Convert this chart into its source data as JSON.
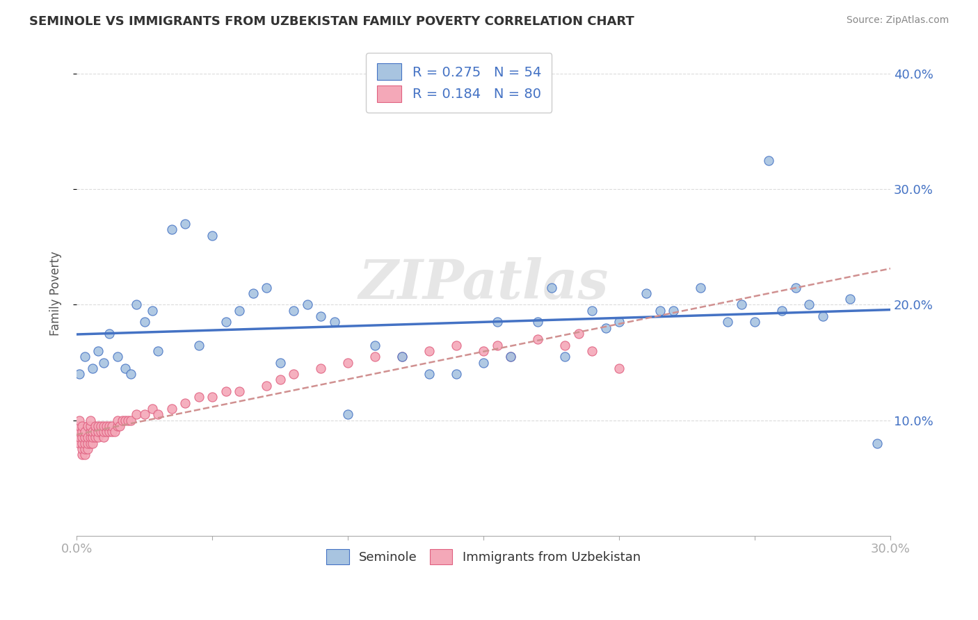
{
  "title": "SEMINOLE VS IMMIGRANTS FROM UZBEKISTAN FAMILY POVERTY CORRELATION CHART",
  "source": "Source: ZipAtlas.com",
  "ylabel": "Family Poverty",
  "legend1_R": "0.275",
  "legend1_N": "54",
  "legend2_R": "0.184",
  "legend2_N": "80",
  "seminole_color": "#a8c4e0",
  "uzbekistan_color": "#f4a8b8",
  "seminole_edge_color": "#4472c4",
  "uzbekistan_edge_color": "#e06080",
  "trend_seminole_color": "#4472c4",
  "trend_uzbekistan_color": "#d09090",
  "watermark": "ZIPatlas",
  "background_color": "#ffffff",
  "seminole_x": [
    0.001,
    0.003,
    0.006,
    0.008,
    0.01,
    0.012,
    0.015,
    0.018,
    0.02,
    0.022,
    0.025,
    0.028,
    0.03,
    0.035,
    0.04,
    0.045,
    0.05,
    0.055,
    0.06,
    0.065,
    0.07,
    0.075,
    0.08,
    0.085,
    0.09,
    0.095,
    0.1,
    0.11,
    0.12,
    0.13,
    0.14,
    0.15,
    0.155,
    0.16,
    0.17,
    0.175,
    0.18,
    0.19,
    0.195,
    0.2,
    0.21,
    0.215,
    0.22,
    0.23,
    0.24,
    0.245,
    0.25,
    0.255,
    0.26,
    0.265,
    0.27,
    0.275,
    0.285,
    0.295
  ],
  "seminole_y": [
    0.14,
    0.155,
    0.145,
    0.16,
    0.15,
    0.175,
    0.155,
    0.145,
    0.14,
    0.2,
    0.185,
    0.195,
    0.16,
    0.265,
    0.27,
    0.165,
    0.26,
    0.185,
    0.195,
    0.21,
    0.215,
    0.15,
    0.195,
    0.2,
    0.19,
    0.185,
    0.105,
    0.165,
    0.155,
    0.14,
    0.14,
    0.15,
    0.185,
    0.155,
    0.185,
    0.215,
    0.155,
    0.195,
    0.18,
    0.185,
    0.21,
    0.195,
    0.195,
    0.215,
    0.185,
    0.2,
    0.185,
    0.325,
    0.195,
    0.215,
    0.2,
    0.19,
    0.205,
    0.08
  ],
  "uzbekistan_x": [
    0.001,
    0.001,
    0.001,
    0.001,
    0.001,
    0.002,
    0.002,
    0.002,
    0.002,
    0.002,
    0.002,
    0.003,
    0.003,
    0.003,
    0.003,
    0.003,
    0.004,
    0.004,
    0.004,
    0.004,
    0.005,
    0.005,
    0.005,
    0.005,
    0.005,
    0.006,
    0.006,
    0.006,
    0.007,
    0.007,
    0.007,
    0.008,
    0.008,
    0.008,
    0.009,
    0.009,
    0.01,
    0.01,
    0.01,
    0.011,
    0.011,
    0.012,
    0.012,
    0.013,
    0.013,
    0.014,
    0.015,
    0.015,
    0.016,
    0.017,
    0.018,
    0.019,
    0.02,
    0.022,
    0.025,
    0.028,
    0.03,
    0.035,
    0.04,
    0.045,
    0.05,
    0.055,
    0.06,
    0.07,
    0.075,
    0.08,
    0.09,
    0.1,
    0.11,
    0.12,
    0.13,
    0.14,
    0.15,
    0.155,
    0.16,
    0.17,
    0.18,
    0.185,
    0.19,
    0.2
  ],
  "uzbekistan_y": [
    0.08,
    0.085,
    0.09,
    0.095,
    0.1,
    0.07,
    0.075,
    0.08,
    0.085,
    0.09,
    0.095,
    0.07,
    0.075,
    0.08,
    0.085,
    0.09,
    0.075,
    0.08,
    0.085,
    0.095,
    0.08,
    0.085,
    0.09,
    0.095,
    0.1,
    0.08,
    0.085,
    0.09,
    0.085,
    0.09,
    0.095,
    0.085,
    0.09,
    0.095,
    0.09,
    0.095,
    0.085,
    0.09,
    0.095,
    0.09,
    0.095,
    0.09,
    0.095,
    0.09,
    0.095,
    0.09,
    0.095,
    0.1,
    0.095,
    0.1,
    0.1,
    0.1,
    0.1,
    0.105,
    0.105,
    0.11,
    0.105,
    0.11,
    0.115,
    0.12,
    0.12,
    0.125,
    0.125,
    0.13,
    0.135,
    0.14,
    0.145,
    0.15,
    0.155,
    0.155,
    0.16,
    0.165,
    0.16,
    0.165,
    0.155,
    0.17,
    0.165,
    0.175,
    0.16,
    0.145
  ],
  "xlim": [
    0.0,
    0.3
  ],
  "ylim": [
    0.0,
    0.42
  ],
  "figsize": [
    14.06,
    8.92
  ],
  "dpi": 100
}
